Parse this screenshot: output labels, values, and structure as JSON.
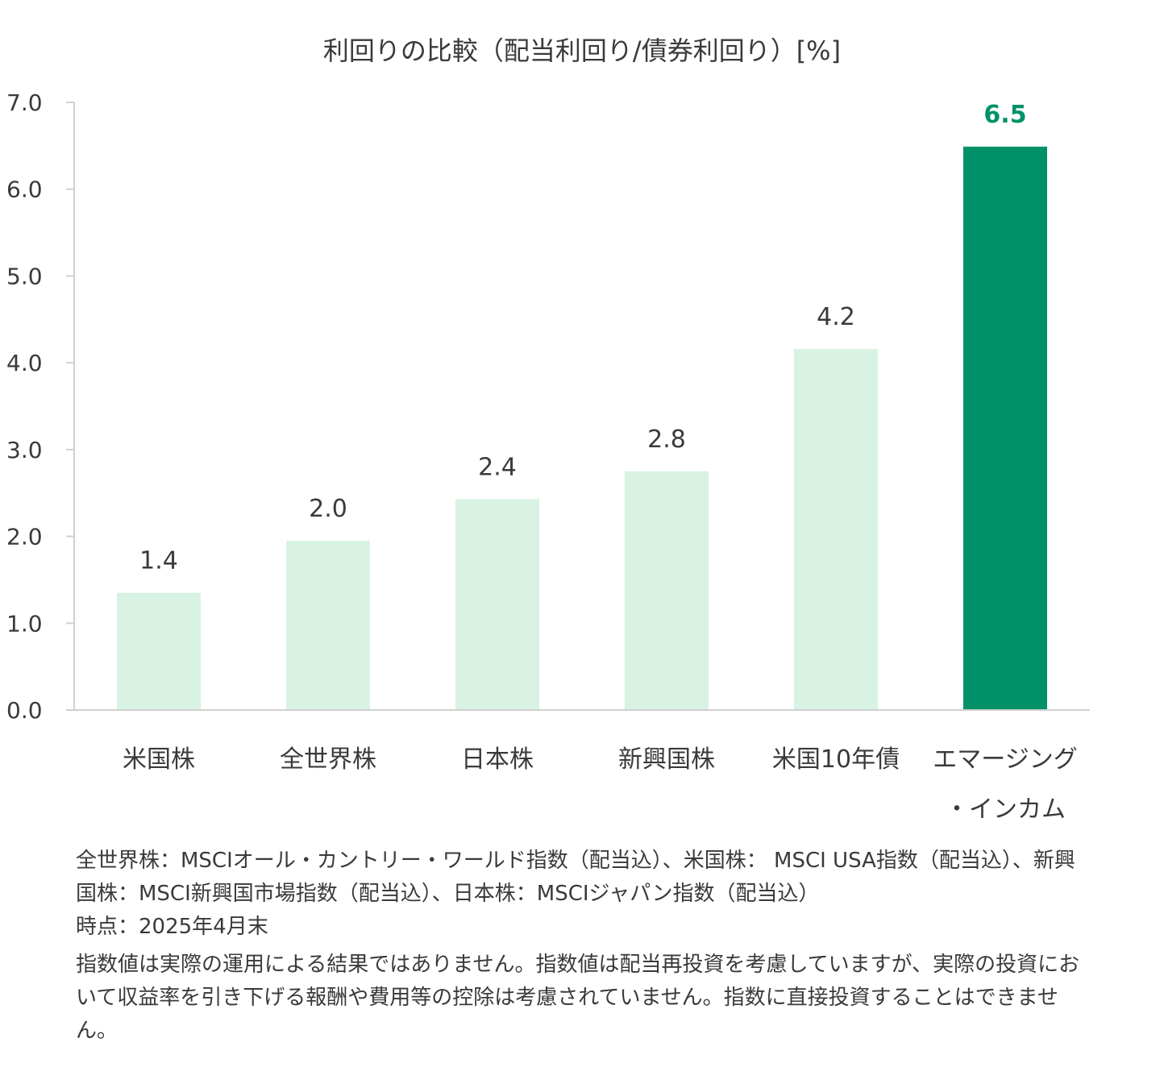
{
  "chart_data": {
    "type": "bar",
    "title": "利回りの比較（配当利回り/債券利回り）[%]",
    "categories": [
      "米国株",
      "全世界株",
      "日本株",
      "新興国株",
      "米国10年債",
      "エマージング・インカム"
    ],
    "category_lines": [
      [
        "米国株"
      ],
      [
        "全世界株"
      ],
      [
        "日本株"
      ],
      [
        "新興国株"
      ],
      [
        "米国10年債"
      ],
      [
        "エマージング",
        "・インカム"
      ]
    ],
    "values": [
      1.35,
      1.95,
      2.43,
      2.75,
      4.16,
      6.49
    ],
    "value_labels": [
      "1.4",
      "2.0",
      "2.4",
      "2.8",
      "4.2",
      "6.5"
    ],
    "highlight_index": 5,
    "ylim": [
      0,
      7
    ],
    "yticks": [
      0,
      1,
      2,
      3,
      4,
      5,
      6,
      7
    ],
    "ytick_labels": [
      "0.0",
      "1.0",
      "2.0",
      "3.0",
      "4.0",
      "5.0",
      "6.0",
      "7.0"
    ],
    "xlabel": "",
    "ylabel": "",
    "grid": false,
    "legend": "none"
  },
  "colors": {
    "bar": "#d8f2e3",
    "highlight_bar": "#009168",
    "highlight_label": "#009168",
    "axis": "#d0d0d0",
    "text": "#3a3a3a"
  },
  "notes": {
    "source_line_1": "全世界株：MSCIオール・カントリー・ワールド指数（配当込）、米国株： MSCI USA指数（配当込）、新興国株：MSCI新興国市場指数（配当込）、日本株：MSCIジャパン指数（配当込）",
    "date_line": "時点：2025年4月末",
    "disclaimer": "指数値は実際の運用による結果ではありません。指数値は配当再投資を考慮していますが、実際の投資において収益率を引き下げる報酬や費用等の控除は考慮されていません。指数に直接投資することはできません。"
  }
}
